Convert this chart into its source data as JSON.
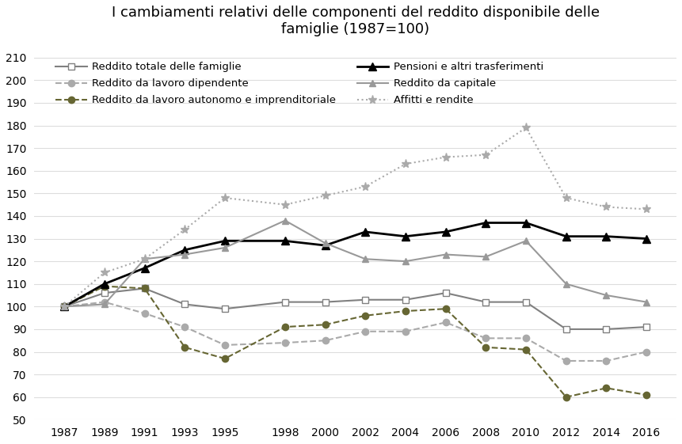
{
  "title": "I cambiamenti relativi delle componenti del reddito disponibile delle\nfamiglie (1987=100)",
  "years": [
    1987,
    1989,
    1991,
    1993,
    1995,
    1998,
    2000,
    2002,
    2004,
    2006,
    2008,
    2010,
    2012,
    2014,
    2016
  ],
  "series": [
    {
      "label": "Reddito totale delle famiglie",
      "color": "#808080",
      "linestyle": "-",
      "marker": "s",
      "markersize": 6,
      "markerfacecolor": "white",
      "markeredgecolor": "#808080",
      "linewidth": 1.5,
      "values": [
        100,
        106,
        108,
        101,
        99,
        102,
        102,
        103,
        103,
        106,
        102,
        102,
        90,
        90,
        91
      ]
    },
    {
      "label": "Reddito da lavoro dipendente",
      "color": "#aaaaaa",
      "linestyle": "--",
      "marker": "o",
      "markersize": 6,
      "markerfacecolor": "#aaaaaa",
      "markeredgecolor": "#aaaaaa",
      "linewidth": 1.5,
      "values": [
        100,
        102,
        97,
        91,
        83,
        84,
        85,
        89,
        89,
        93,
        86,
        86,
        76,
        76,
        80
      ]
    },
    {
      "label": "Reddito da lavoro autonomo e imprenditoriale",
      "color": "#666633",
      "linestyle": "--",
      "marker": "o",
      "markersize": 6,
      "markerfacecolor": "#666633",
      "markeredgecolor": "#666633",
      "linewidth": 1.5,
      "values": [
        100,
        109,
        108,
        82,
        77,
        91,
        92,
        96,
        98,
        99,
        82,
        81,
        60,
        64,
        61
      ]
    },
    {
      "label": "Pensioni e altri trasferimenti",
      "color": "#000000",
      "linestyle": "-",
      "marker": "^",
      "markersize": 7,
      "markerfacecolor": "#000000",
      "markeredgecolor": "#000000",
      "linewidth": 2.0,
      "values": [
        100,
        110,
        117,
        125,
        129,
        129,
        127,
        133,
        131,
        133,
        137,
        137,
        131,
        131,
        130
      ]
    },
    {
      "label": "Reddito da capitale",
      "color": "#999999",
      "linestyle": "-",
      "marker": "^",
      "markersize": 6,
      "markerfacecolor": "#999999",
      "markeredgecolor": "#999999",
      "linewidth": 1.5,
      "values": [
        100,
        101,
        121,
        123,
        126,
        138,
        128,
        121,
        120,
        123,
        122,
        129,
        110,
        105,
        102
      ]
    },
    {
      "label": "Affitti e rendite",
      "color": "#aaaaaa",
      "linestyle": ":",
      "marker": "*",
      "markersize": 8,
      "markerfacecolor": "#aaaaaa",
      "markeredgecolor": "#aaaaaa",
      "linewidth": 1.5,
      "values": [
        100,
        115,
        121,
        134,
        148,
        145,
        149,
        153,
        163,
        166,
        167,
        179,
        148,
        144,
        143
      ]
    }
  ],
  "legend_order": [
    0,
    1,
    2,
    3,
    4,
    5
  ],
  "ylim": [
    50,
    215
  ],
  "yticks": [
    50,
    60,
    70,
    80,
    90,
    100,
    110,
    120,
    130,
    140,
    150,
    160,
    170,
    180,
    190,
    200,
    210
  ],
  "background_color": "#ffffff",
  "title_fontsize": 13,
  "legend_fontsize": 9.5,
  "grid_color": "#dddddd"
}
